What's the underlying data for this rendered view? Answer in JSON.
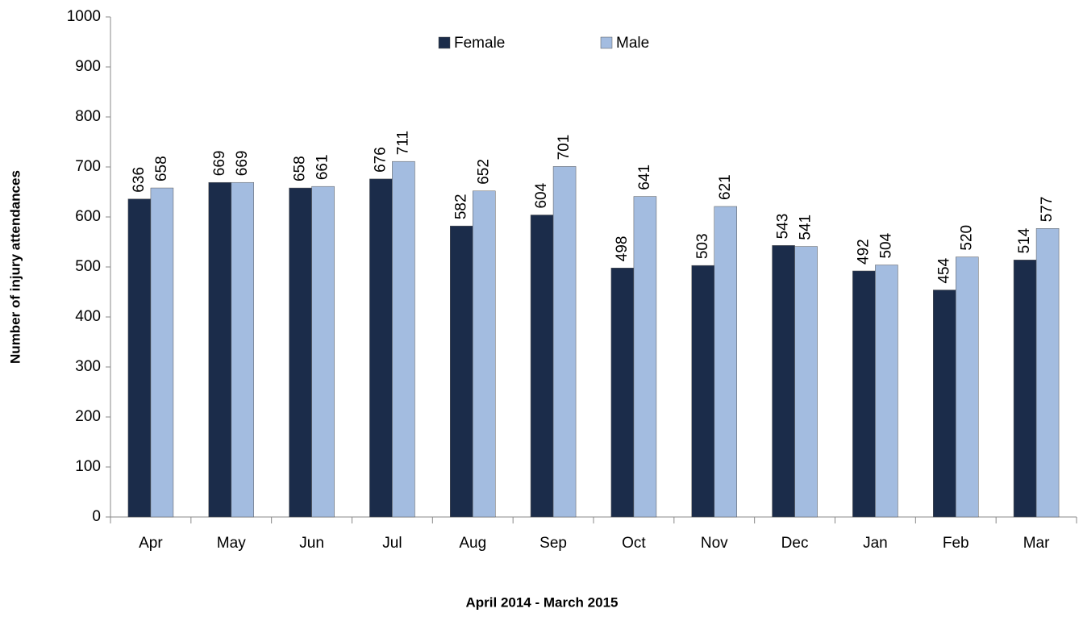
{
  "chart_data": {
    "type": "bar",
    "x_label": "April 2014 - March 2015",
    "y_label": "Number of injury attendances",
    "categories": [
      "Apr",
      "May",
      "Jun",
      "Jul",
      "Aug",
      "Sep",
      "Oct",
      "Nov",
      "Dec",
      "Jan",
      "Feb",
      "Mar"
    ],
    "series": [
      {
        "name": "Female",
        "color": "#1b2c4a",
        "values": [
          636,
          669,
          658,
          676,
          582,
          604,
          498,
          503,
          543,
          492,
          454,
          514
        ]
      },
      {
        "name": "Male",
        "color": "#a3bce0",
        "values": [
          658,
          669,
          661,
          711,
          652,
          701,
          641,
          621,
          541,
          504,
          520,
          577
        ]
      }
    ],
    "ylim": [
      0,
      1000
    ],
    "yticks": [
      0,
      100,
      200,
      300,
      400,
      500,
      600,
      700,
      800,
      900,
      1000
    ],
    "grid": false,
    "legend": "top"
  }
}
